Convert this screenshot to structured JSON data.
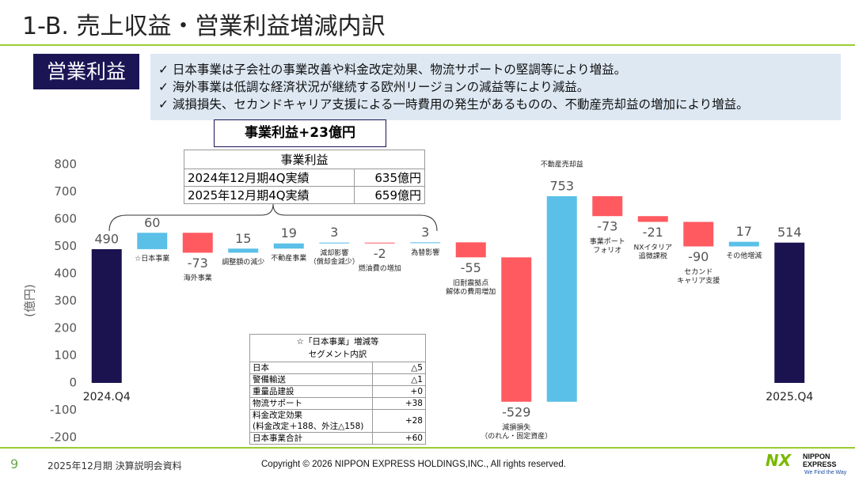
{
  "header": {
    "title": "1-B. 売上収益・営業利益増減内訳",
    "tag": "営業利益",
    "bullets": [
      "✓ 日本事業は子会社の事業改善や料金改定効果、物流サポートの堅調等により増益。",
      "✓ 海外事業は低調な経済状況が継続する欧州リージョンの減益等により減益。",
      "✓ 減損損失、セカンドキャリア支援による一時費用の発生があるものの、不動産売却益の増加により増益。"
    ]
  },
  "summary": {
    "headline": "事業利益+23億円",
    "table": {
      "title": "事業利益",
      "rows": [
        [
          "2024年12月期4Q実績",
          "635億円"
        ],
        [
          "2025年12月期4Q実績",
          "659億円"
        ]
      ]
    }
  },
  "segment_table": {
    "title": "☆「日本事業」増減等\nセグメント内訳",
    "rows": [
      [
        "日本",
        "△5"
      ],
      [
        "警備輸送",
        "△1"
      ],
      [
        "重量品建設",
        "+0"
      ],
      [
        "物流サポート",
        "+38"
      ],
      [
        "料金改定効果\n(料金改定＋188、外注△158)",
        "+28"
      ],
      [
        "日本事業合計",
        "+60"
      ]
    ]
  },
  "chart_data": {
    "type": "waterfall",
    "y_label": "(億円)",
    "categories": [
      "2024.Q4",
      "☆日本事業",
      "海外事業",
      "調整額の減少",
      "不動産事業",
      "減却影響\n（償却金減少）",
      "燃油費の増加",
      "為替影響",
      "旧耐震拠点\n解体の費用増加",
      "減損損失\n（のれん・固定資産）",
      "不動産売却益",
      "事業ポート\nフォリオ",
      "NXイタリア\n追徴課税",
      "セカンド\nキャリア支援",
      "その他増減",
      "2025.Q4"
    ],
    "values": [
      490,
      60,
      -73,
      15,
      19,
      3,
      -2,
      3,
      -55,
      -529,
      753,
      -73,
      -21,
      -90,
      17,
      514
    ],
    "total_color": "#1b1250",
    "increase_color": "#5bc0e8",
    "decrease_color": "#ff5a60",
    "ylim": [
      -200,
      800
    ],
    "yticks": [
      -200,
      -100,
      0,
      100,
      200,
      300,
      400,
      500,
      600,
      700,
      800
    ]
  },
  "footer": {
    "page": "9",
    "doc": "2025年12月期 決算説明会資料",
    "copyright": "Copyright © 2026 NIPPON EXPRESS HOLDINGS,INC., All rights reserved.",
    "logo_mark": "NX",
    "logo_name": "NIPPON\nEXPRESS",
    "logo_tagline": "We Find the Way"
  }
}
